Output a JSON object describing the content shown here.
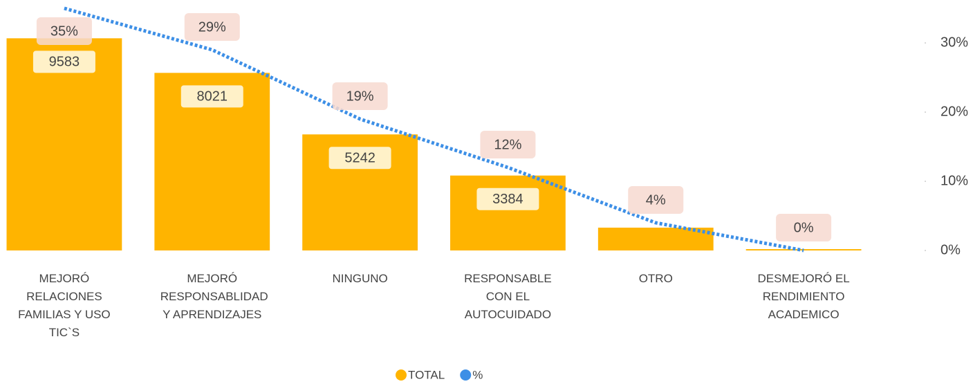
{
  "chart_data": {
    "type": "bar_line",
    "categories": [
      "MEJORÓ RELACIONES FAMILIAS Y USO TIC`S",
      "MEJORÓ RESPONSABLIDAD Y APRENDIZAJES",
      "NINGUNO",
      "RESPONSABLE CON EL AUTOCUIDADO",
      "OTRO",
      "DESMEJORÓ  EL RENDIMIENTO ACADEMICO"
    ],
    "series": [
      {
        "name": "TOTAL",
        "color": "#ffb400",
        "type": "bar",
        "values": [
          9583,
          8021,
          5242,
          3384,
          1030,
          60
        ]
      },
      {
        "name": "%",
        "color": "#3d8fe6",
        "type": "line",
        "axis": "y2",
        "values": [
          35,
          29,
          19,
          12,
          4,
          0
        ],
        "value_labels": [
          "35%",
          "29%",
          "19%",
          "12%",
          "4%",
          "0%"
        ]
      }
    ],
    "ylim": [
      0,
      11000
    ],
    "y2lim": [
      0,
      35.2
    ],
    "y2ticks": [
      {
        "value": 0,
        "label": "0%"
      },
      {
        "value": 10,
        "label": "10%"
      },
      {
        "value": 20,
        "label": "20%"
      },
      {
        "value": 30,
        "label": "30%"
      }
    ],
    "legend": "bottom"
  }
}
